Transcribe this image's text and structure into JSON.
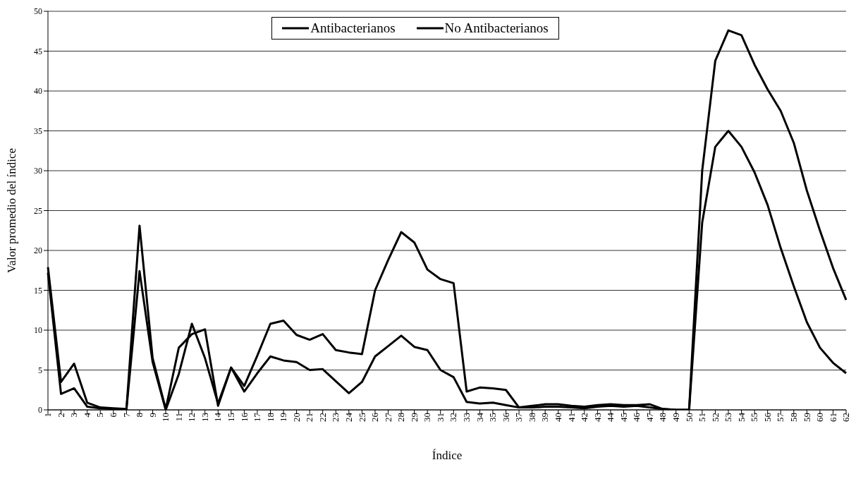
{
  "chart_data": {
    "type": "line",
    "xlabel": "Índice",
    "ylabel": "Valor promedio del índice",
    "categories": [
      "1",
      "2",
      "3",
      "4",
      "5",
      "6",
      "7",
      "8",
      "9",
      "10",
      "11",
      "12",
      "13",
      "14",
      "15",
      "16",
      "17",
      "18",
      "19",
      "20",
      "21",
      "22",
      "23",
      "24",
      "25",
      "26",
      "27",
      "28",
      "29",
      "30",
      "31",
      "32",
      "33",
      "34",
      "35",
      "36",
      "37",
      "38",
      "39",
      "40",
      "41",
      "42",
      "43",
      "44",
      "45",
      "46",
      "47",
      "48",
      "49",
      "50",
      "51",
      "52",
      "53",
      "54",
      "55",
      "56",
      "57",
      "58",
      "59",
      "60",
      "61",
      "62"
    ],
    "series": [
      {
        "name": "Antibacterianos",
        "color": "#000000",
        "values": [
          17.9,
          3.5,
          5.8,
          0.9,
          0.3,
          0.2,
          0.1,
          23.1,
          6.5,
          0.1,
          7.8,
          9.5,
          10.1,
          0.5,
          5.3,
          3.0,
          6.8,
          10.8,
          11.2,
          9.4,
          8.8,
          9.5,
          7.5,
          7.2,
          7.0,
          15.0,
          18.8,
          22.3,
          21.0,
          17.6,
          16.4,
          15.9,
          2.3,
          2.8,
          2.7,
          2.5,
          0.3,
          0.5,
          0.7,
          0.7,
          0.5,
          0.4,
          0.6,
          0.7,
          0.6,
          0.6,
          0.7,
          0.1,
          0,
          0,
          30,
          43.8,
          47.6,
          47,
          43.3,
          40.2,
          37.5,
          33.5,
          27.5,
          22.5,
          17.8,
          13.8
        ]
      },
      {
        "name": "No Antibacterianos",
        "color": "#000000",
        "values": [
          17.2,
          2.0,
          2.7,
          0.4,
          0.2,
          0.1,
          0.1,
          17.4,
          6.0,
          0,
          4.5,
          10.8,
          6.5,
          0.8,
          5.3,
          2.3,
          4.6,
          6.7,
          6.2,
          6.0,
          5.0,
          5.1,
          3.6,
          2.1,
          3.5,
          6.7,
          8.0,
          9.3,
          7.9,
          7.5,
          5.0,
          4.1,
          1.0,
          0.8,
          0.9,
          0.6,
          0.3,
          0.3,
          0.4,
          0.4,
          0.3,
          0.2,
          0.4,
          0.5,
          0.4,
          0.5,
          0.3,
          0.1,
          0,
          0,
          23.5,
          33,
          35,
          33,
          29.8,
          25.7,
          20.3,
          15.5,
          11,
          7.8,
          5.9,
          4.6
        ]
      }
    ],
    "ylim": [
      0,
      50
    ],
    "yticks": [
      0,
      5,
      10,
      15,
      20,
      25,
      30,
      35,
      40,
      45,
      50
    ],
    "grid": "y",
    "legend": "top",
    "marker": "none",
    "line_style": "solid"
  }
}
